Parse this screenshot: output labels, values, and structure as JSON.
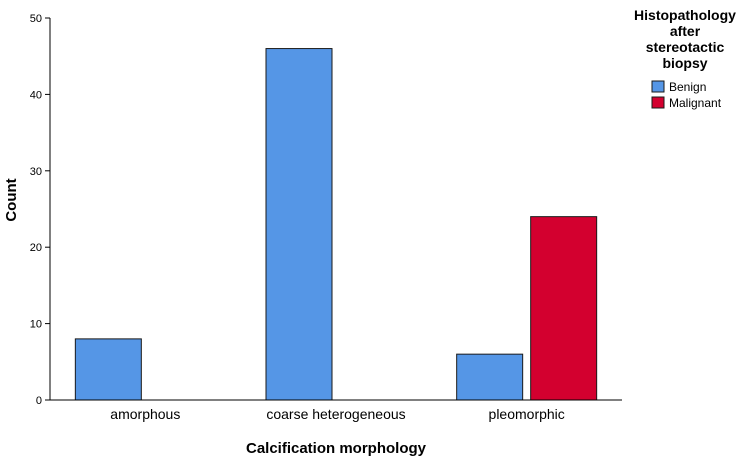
{
  "chart_data": {
    "type": "bar",
    "categories": [
      "amorphous",
      "coarse heterogeneous",
      "pleomorphic"
    ],
    "series": [
      {
        "name": "Benign",
        "values": [
          8,
          46,
          6
        ],
        "color": "#5596E6"
      },
      {
        "name": "Malignant",
        "values": [
          null,
          null,
          24
        ],
        "color": "#D3002F"
      }
    ],
    "xlabel": "Calcification morphology",
    "ylabel": "Count",
    "ylim": [
      0,
      50
    ],
    "yticks": [
      0,
      10,
      20,
      30,
      40,
      50
    ],
    "grid": false,
    "legend": {
      "title_lines": [
        "Histopathology",
        "after",
        "stereotactic",
        "biopsy"
      ],
      "placement": "right"
    }
  }
}
